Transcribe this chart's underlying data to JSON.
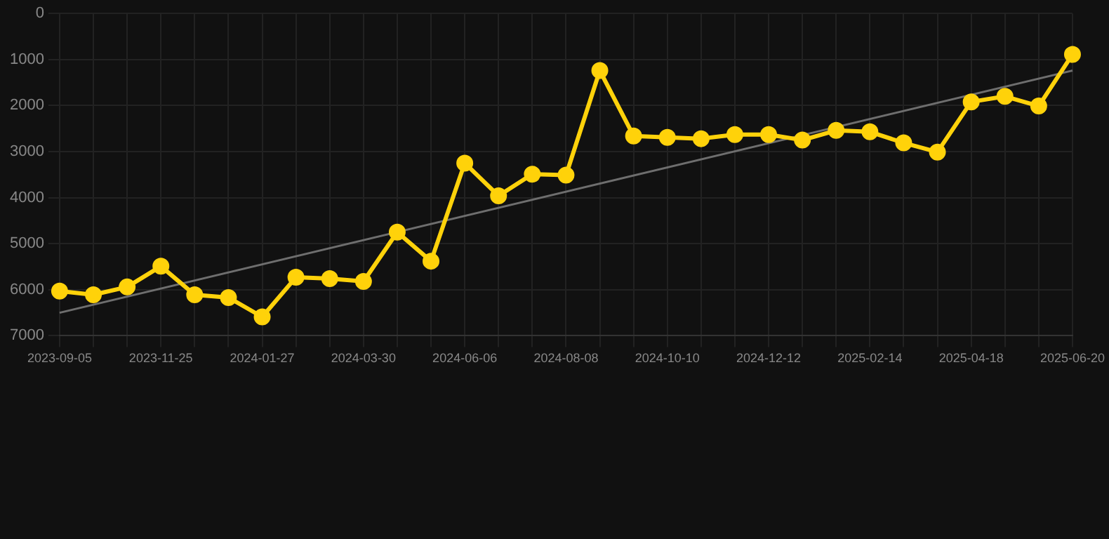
{
  "chart_data": {
    "type": "line",
    "categories": [
      "2023-09-05",
      null,
      null,
      "2023-11-25",
      null,
      null,
      "2024-01-27",
      null,
      null,
      "2024-03-30",
      null,
      null,
      "2024-06-06",
      null,
      null,
      "2024-08-08",
      null,
      null,
      "2024-10-10",
      null,
      null,
      "2024-12-12",
      null,
      null,
      "2025-02-14",
      null,
      null,
      "2025-04-18",
      null,
      null,
      "2025-06-20"
    ],
    "series": [
      {
        "color": "#ffd20a",
        "marker": "circle",
        "values": [
          6030,
          6110,
          5940,
          5490,
          6110,
          6170,
          6590,
          5730,
          5760,
          5820,
          4750,
          5380,
          3250,
          3960,
          3490,
          3510,
          1240,
          2660,
          2690,
          2720,
          2630,
          2630,
          2750,
          2540,
          2570,
          2810,
          3010,
          1920,
          1800,
          2010,
          890
        ]
      },
      {
        "type": "line",
        "color": "#6e6e6e",
        "marker": "none",
        "values": [
          6500,
          null,
          null,
          null,
          null,
          null,
          null,
          null,
          null,
          null,
          null,
          null,
          null,
          null,
          null,
          null,
          null,
          null,
          null,
          null,
          null,
          null,
          null,
          null,
          null,
          null,
          null,
          null,
          null,
          null,
          1240
        ]
      }
    ],
    "ylim": [
      7000,
      0
    ],
    "yticks": [
      0,
      1000,
      2000,
      3000,
      4000,
      5000,
      6000,
      7000
    ],
    "grid": true,
    "legend": false
  }
}
